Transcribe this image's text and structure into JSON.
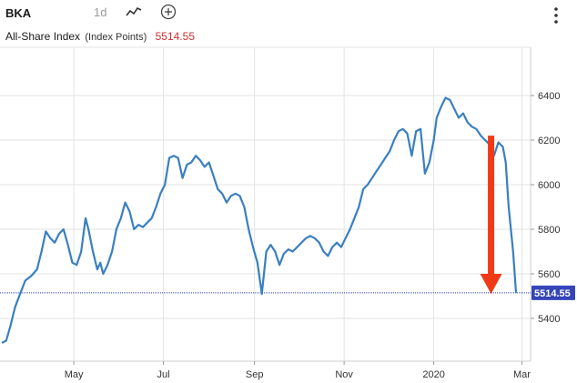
{
  "toolbar": {
    "symbol": "BKA",
    "interval": "1d",
    "line_icon": "line-chart-icon",
    "add_icon": "plus-circle-icon",
    "menu_icon": "more-vertical-icon"
  },
  "header": {
    "index_name": "All-Share Index",
    "units": "(Index Points)",
    "last_price": "5514.55"
  },
  "colors": {
    "line": "#3a7fc1",
    "last_price_text": "#d32f2f",
    "last_price_badge": "#3545b8",
    "arrow": "#f03a17",
    "grid": "#e3e3e3"
  },
  "chart_data": {
    "type": "line",
    "title": "",
    "xlabel": "",
    "ylabel": "",
    "ylim": [
      5280,
      6500
    ],
    "x_ticks": [
      "May",
      "Jul",
      "Sep",
      "Nov",
      "2020",
      "Mar"
    ],
    "y_ticks": [
      5400,
      5600,
      5800,
      6000,
      6200,
      6400
    ],
    "last_value_label": "5514.55",
    "grid": true,
    "series": [
      {
        "name": "",
        "points": [
          [
            "2019-03-13",
            5290
          ],
          [
            "2019-03-16",
            5300
          ],
          [
            "2019-03-19",
            5370
          ],
          [
            "2019-03-22",
            5450
          ],
          [
            "2019-03-26",
            5520
          ],
          [
            "2019-03-29",
            5570
          ],
          [
            "2019-04-02",
            5590
          ],
          [
            "2019-04-06",
            5620
          ],
          [
            "2019-04-09",
            5700
          ],
          [
            "2019-04-12",
            5790
          ],
          [
            "2019-04-15",
            5760
          ],
          [
            "2019-04-18",
            5740
          ],
          [
            "2019-04-21",
            5780
          ],
          [
            "2019-04-24",
            5800
          ],
          [
            "2019-04-27",
            5730
          ],
          [
            "2019-04-30",
            5650
          ],
          [
            "2019-05-03",
            5640
          ],
          [
            "2019-05-06",
            5700
          ],
          [
            "2019-05-09",
            5850
          ],
          [
            "2019-05-11",
            5800
          ],
          [
            "2019-05-14",
            5700
          ],
          [
            "2019-05-17",
            5620
          ],
          [
            "2019-05-19",
            5650
          ],
          [
            "2019-05-21",
            5600
          ],
          [
            "2019-05-24",
            5640
          ],
          [
            "2019-05-27",
            5700
          ],
          [
            "2019-05-30",
            5800
          ],
          [
            "2019-06-02",
            5850
          ],
          [
            "2019-06-05",
            5920
          ],
          [
            "2019-06-08",
            5880
          ],
          [
            "2019-06-11",
            5800
          ],
          [
            "2019-06-14",
            5820
          ],
          [
            "2019-06-17",
            5810
          ],
          [
            "2019-06-20",
            5830
          ],
          [
            "2019-06-23",
            5850
          ],
          [
            "2019-06-26",
            5900
          ],
          [
            "2019-06-29",
            5960
          ],
          [
            "2019-07-02",
            6000
          ],
          [
            "2019-07-05",
            6120
          ],
          [
            "2019-07-08",
            6130
          ],
          [
            "2019-07-11",
            6120
          ],
          [
            "2019-07-14",
            6030
          ],
          [
            "2019-07-17",
            6090
          ],
          [
            "2019-07-20",
            6100
          ],
          [
            "2019-07-23",
            6130
          ],
          [
            "2019-07-26",
            6110
          ],
          [
            "2019-07-29",
            6080
          ],
          [
            "2019-08-01",
            6100
          ],
          [
            "2019-08-04",
            6040
          ],
          [
            "2019-08-07",
            5980
          ],
          [
            "2019-08-10",
            5960
          ],
          [
            "2019-08-13",
            5920
          ],
          [
            "2019-08-16",
            5950
          ],
          [
            "2019-08-19",
            5960
          ],
          [
            "2019-08-22",
            5950
          ],
          [
            "2019-08-25",
            5900
          ],
          [
            "2019-08-28",
            5800
          ],
          [
            "2019-08-31",
            5720
          ],
          [
            "2019-09-03",
            5650
          ],
          [
            "2019-09-06",
            5510
          ],
          [
            "2019-09-09",
            5700
          ],
          [
            "2019-09-12",
            5730
          ],
          [
            "2019-09-15",
            5700
          ],
          [
            "2019-09-18",
            5640
          ],
          [
            "2019-09-21",
            5690
          ],
          [
            "2019-09-24",
            5710
          ],
          [
            "2019-09-27",
            5700
          ],
          [
            "2019-09-30",
            5720
          ],
          [
            "2019-10-03",
            5740
          ],
          [
            "2019-10-06",
            5760
          ],
          [
            "2019-10-09",
            5770
          ],
          [
            "2019-10-12",
            5760
          ],
          [
            "2019-10-15",
            5740
          ],
          [
            "2019-10-18",
            5700
          ],
          [
            "2019-10-21",
            5680
          ],
          [
            "2019-10-24",
            5720
          ],
          [
            "2019-10-27",
            5740
          ],
          [
            "2019-10-30",
            5720
          ],
          [
            "2019-11-02",
            5760
          ],
          [
            "2019-11-05",
            5800
          ],
          [
            "2019-11-08",
            5850
          ],
          [
            "2019-11-11",
            5900
          ],
          [
            "2019-11-14",
            5980
          ],
          [
            "2019-11-17",
            6000
          ],
          [
            "2019-11-20",
            6030
          ],
          [
            "2019-11-23",
            6060
          ],
          [
            "2019-11-26",
            6090
          ],
          [
            "2019-11-29",
            6120
          ],
          [
            "2019-12-02",
            6150
          ],
          [
            "2019-12-05",
            6200
          ],
          [
            "2019-12-08",
            6240
          ],
          [
            "2019-12-11",
            6250
          ],
          [
            "2019-12-14",
            6230
          ],
          [
            "2019-12-17",
            6130
          ],
          [
            "2019-12-20",
            6240
          ],
          [
            "2019-12-23",
            6250
          ],
          [
            "2019-12-26",
            6050
          ],
          [
            "2019-12-29",
            6100
          ],
          [
            "2020-01-01",
            6200
          ],
          [
            "2020-01-03",
            6300
          ],
          [
            "2020-01-06",
            6350
          ],
          [
            "2020-01-09",
            6390
          ],
          [
            "2020-01-12",
            6380
          ],
          [
            "2020-01-15",
            6340
          ],
          [
            "2020-01-18",
            6300
          ],
          [
            "2020-01-21",
            6320
          ],
          [
            "2020-01-24",
            6280
          ],
          [
            "2020-01-27",
            6260
          ],
          [
            "2020-01-30",
            6250
          ],
          [
            "2020-02-02",
            6220
          ],
          [
            "2020-02-05",
            6200
          ],
          [
            "2020-02-08",
            6180
          ],
          [
            "2020-02-11",
            6130
          ],
          [
            "2020-02-14",
            6190
          ],
          [
            "2020-02-17",
            6170
          ],
          [
            "2020-02-19",
            6100
          ],
          [
            "2020-02-21",
            5900
          ],
          [
            "2020-02-24",
            5700
          ],
          [
            "2020-02-26",
            5514.55
          ]
        ]
      }
    ],
    "annotations": [
      {
        "type": "arrow",
        "from": [
          "2020-02-09",
          6220
        ],
        "to": [
          "2020-02-09",
          5510
        ]
      }
    ]
  }
}
